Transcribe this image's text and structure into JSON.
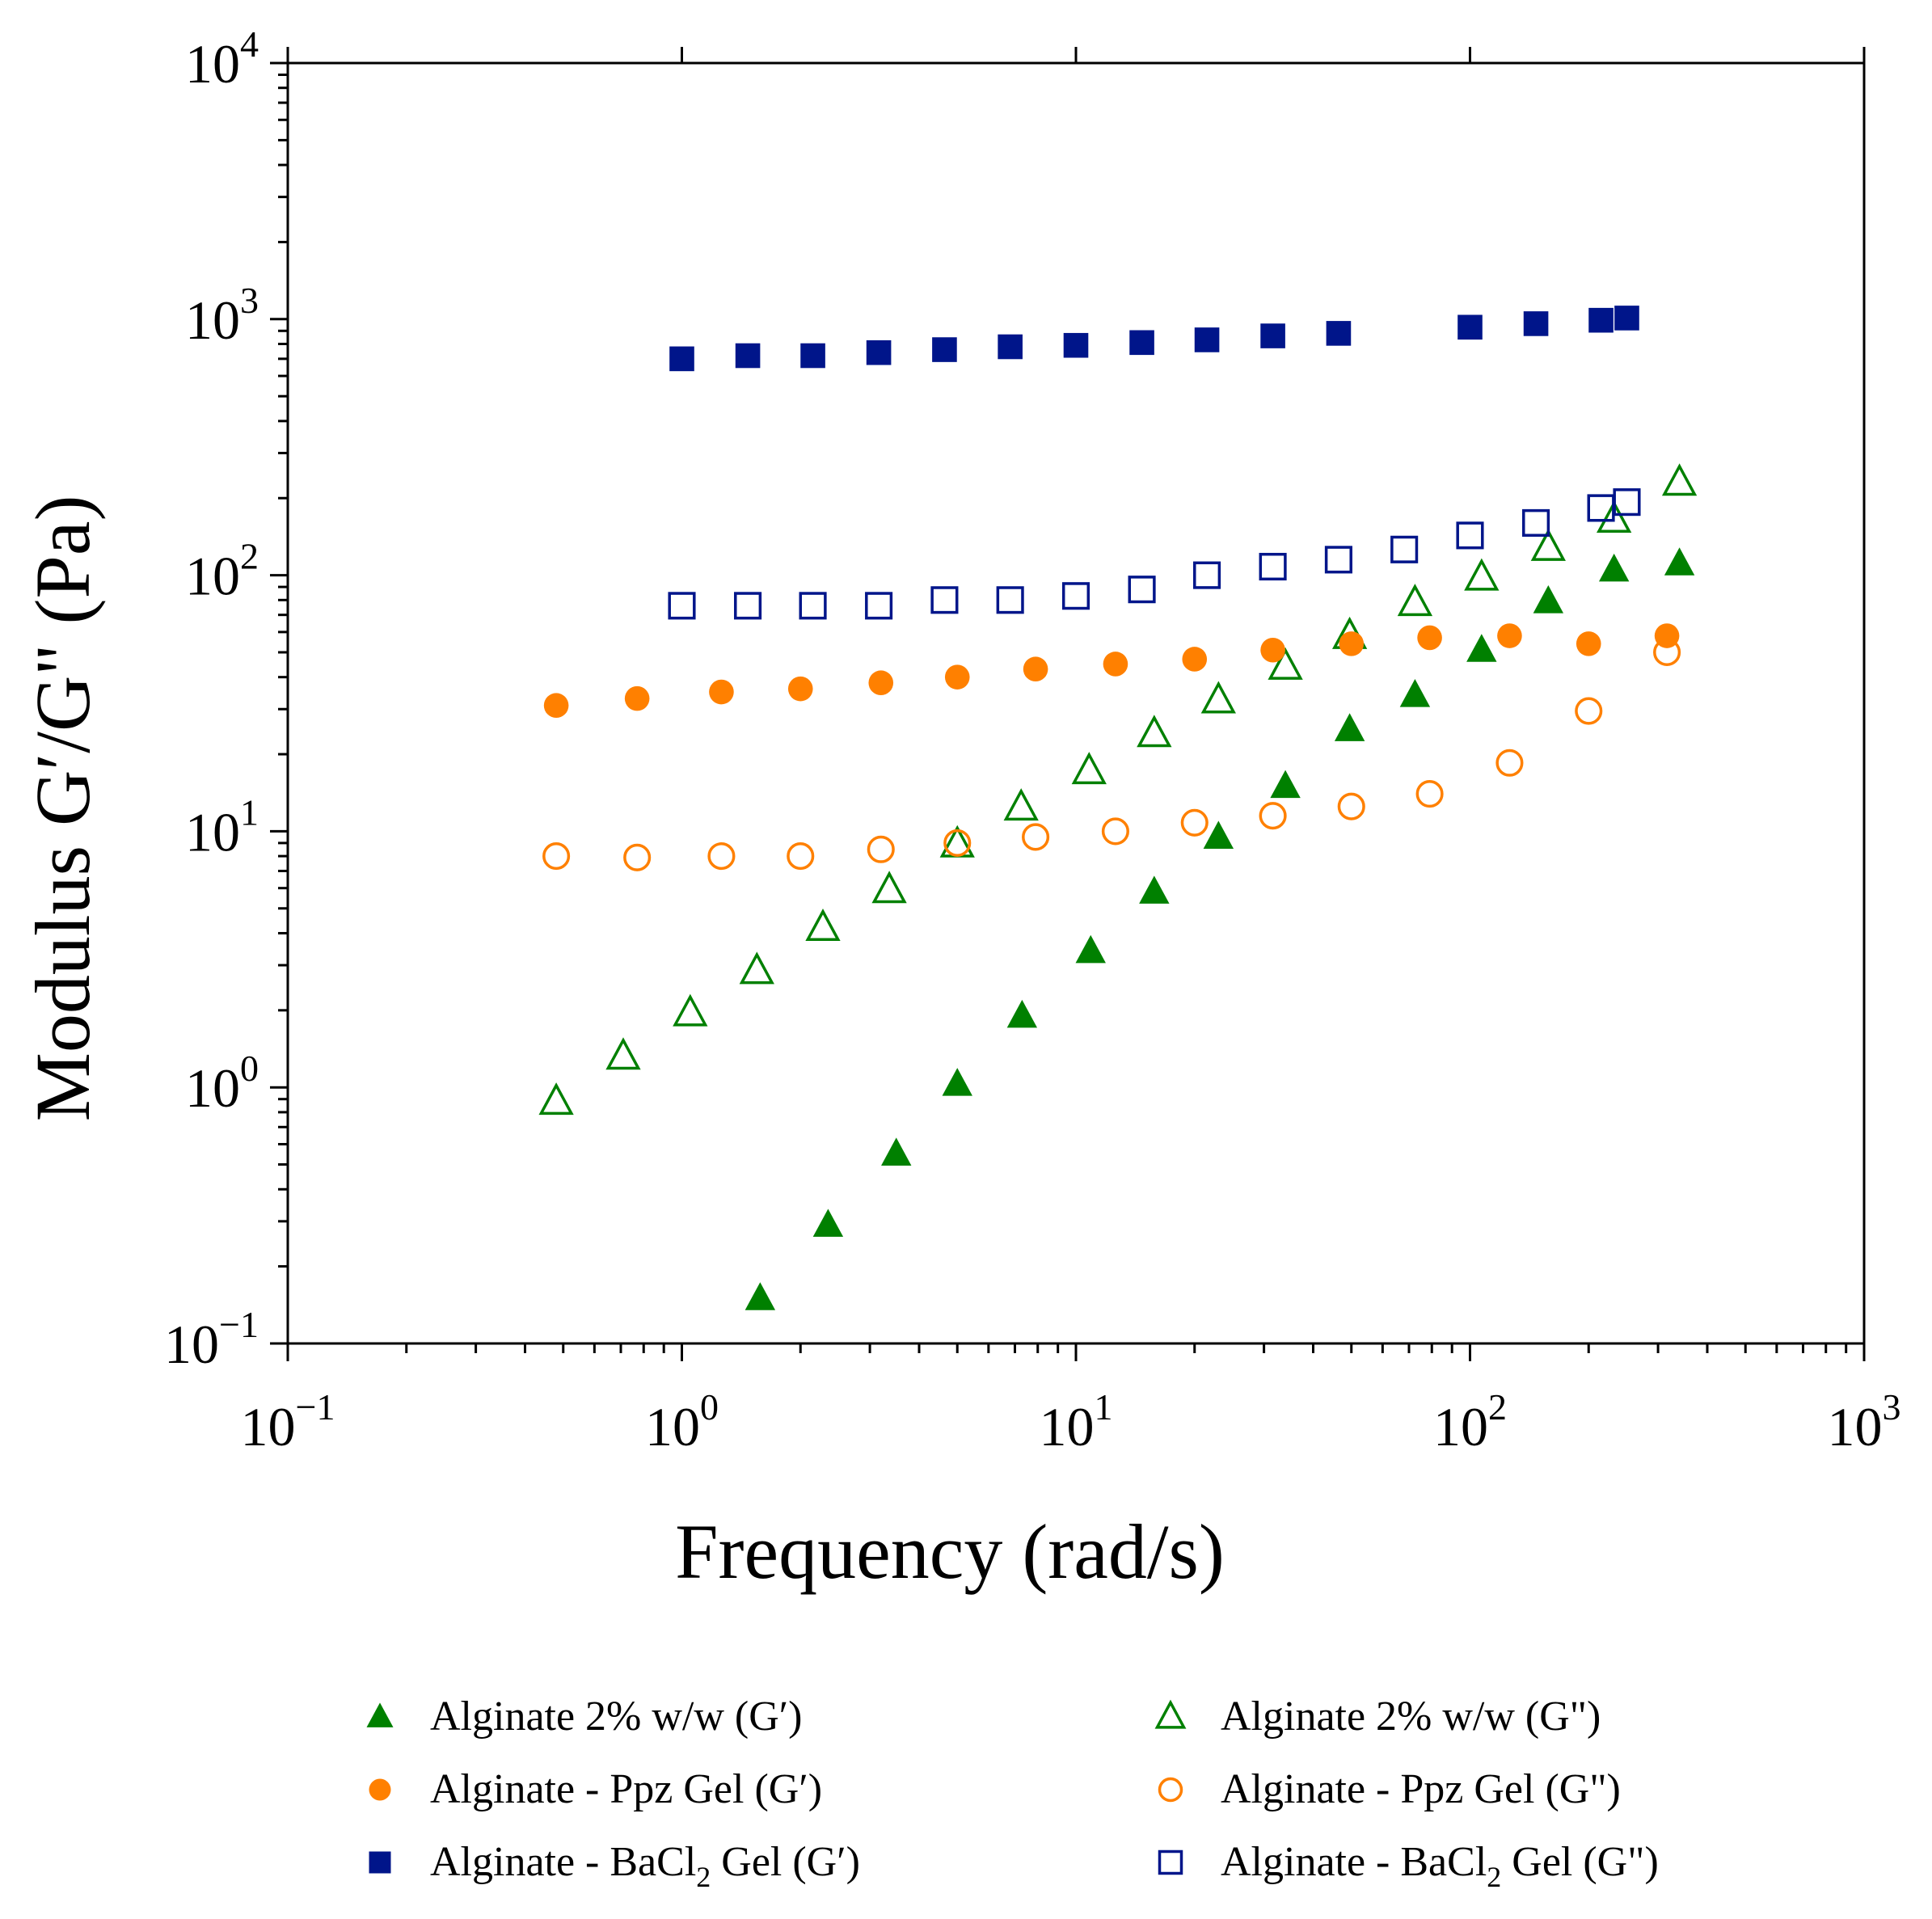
{
  "chart_data": {
    "type": "scatter",
    "title": "",
    "xlabel": "Frequency (rad/s)",
    "ylabel": "Modulus G′/G\" (Pa)",
    "xscale": "log",
    "yscale": "log",
    "xlim": [
      0.1,
      1000
    ],
    "ylim": [
      0.1,
      10000
    ],
    "x_ticks": [
      {
        "base": "10",
        "exp": "−1"
      },
      {
        "base": "10",
        "exp": "0"
      },
      {
        "base": "10",
        "exp": "1"
      },
      {
        "base": "10",
        "exp": "2"
      },
      {
        "base": "10",
        "exp": "3"
      }
    ],
    "y_ticks": [
      {
        "base": "10",
        "exp": "−1"
      },
      {
        "base": "10",
        "exp": "0"
      },
      {
        "base": "10",
        "exp": "1"
      },
      {
        "base": "10",
        "exp": "2"
      },
      {
        "base": "10",
        "exp": "3"
      },
      {
        "base": "10",
        "exp": "4"
      }
    ],
    "grid": false,
    "legend_position": "bottom",
    "series": [
      {
        "name": "Alginate 2% w/w (G′)",
        "marker": "triangle",
        "filled": true,
        "color": "#008000",
        "x": [
          1.58,
          2.35,
          3.5,
          5.0,
          7.3,
          10.9,
          15.8,
          23.0,
          34.0,
          49.5,
          72.5,
          107,
          158,
          232,
          340
        ],
        "y": [
          0.15,
          0.29,
          0.55,
          1.03,
          1.9,
          3.4,
          5.8,
          9.5,
          15.0,
          25.0,
          34.0,
          51.0,
          79.0,
          105.0,
          111.0
        ]
      },
      {
        "name": "Alginate 2% w/w (G\")",
        "marker": "triangle",
        "filled": false,
        "color": "#008000",
        "x": [
          0.48,
          0.71,
          1.05,
          1.55,
          2.28,
          3.36,
          5.0,
          7.26,
          10.8,
          15.8,
          23.0,
          34.0,
          49.5,
          72.5,
          107,
          158,
          232,
          340
        ],
        "y": [
          0.88,
          1.32,
          1.95,
          2.85,
          4.2,
          5.9,
          8.9,
          12.4,
          17.2,
          24.0,
          32.5,
          44.0,
          58.0,
          78.0,
          98.0,
          128.0,
          165.0,
          230.0
        ]
      },
      {
        "name": "Alginate - Ppz Gel (G′)",
        "marker": "circle",
        "filled": true,
        "color": "#ff8000",
        "x": [
          0.48,
          0.77,
          1.26,
          2.0,
          3.2,
          5.0,
          7.9,
          12.6,
          20.0,
          31.6,
          50.0,
          79.0,
          126,
          200,
          316
        ],
        "y": [
          31.0,
          33.0,
          35.0,
          36.0,
          38.0,
          40.0,
          43.0,
          45.0,
          47.0,
          51.0,
          54.0,
          57.0,
          58.0,
          54.0,
          58.0
        ]
      },
      {
        "name": "Alginate - Ppz Gel (G\")",
        "marker": "circle",
        "filled": false,
        "color": "#ff8000",
        "x": [
          0.48,
          0.77,
          1.26,
          2.0,
          3.2,
          5.0,
          7.9,
          12.6,
          20.0,
          31.6,
          50.0,
          79.0,
          126,
          200,
          316
        ],
        "y": [
          8.0,
          7.9,
          8.0,
          8.0,
          8.5,
          9.0,
          9.5,
          10.0,
          10.8,
          11.5,
          12.5,
          14.0,
          18.5,
          29.5,
          50.0
        ]
      },
      {
        "name": "Alginate - BaCl₂ Gel (G′)",
        "marker": "square",
        "filled": true,
        "color": "#00158a",
        "x": [
          1.0,
          1.47,
          2.15,
          3.16,
          4.64,
          6.81,
          10.0,
          14.7,
          21.5,
          31.6,
          46.4,
          100,
          147,
          215,
          250
        ],
        "y": [
          700,
          720,
          720,
          740,
          760,
          780,
          790,
          810,
          830,
          860,
          880,
          930,
          960,
          990,
          1010
        ]
      },
      {
        "name": "Alginate - BaCl₂ Gel (G\")",
        "marker": "square",
        "filled": false,
        "color": "#00158a",
        "x": [
          1.0,
          1.47,
          2.15,
          3.16,
          4.64,
          6.81,
          10.0,
          14.7,
          21.5,
          31.6,
          46.4,
          68.1,
          100,
          147,
          215,
          250
        ],
        "y": [
          76,
          76,
          76,
          76,
          80,
          80,
          83,
          88,
          100,
          108,
          115,
          126,
          143,
          160,
          183,
          193
        ]
      }
    ]
  },
  "legend": {
    "items": [
      {
        "text": "Alginate 2% w/w (G′)"
      },
      {
        "text": "Alginate 2% w/w (G\")"
      },
      {
        "text": "Alginate - Ppz Gel (G′)"
      },
      {
        "text": "Alginate - Ppz Gel (G\")"
      },
      {
        "pre": "Alginate - BaCl",
        "sub": "2",
        "post": " Gel (G′)"
      },
      {
        "pre": "Alginate - BaCl",
        "sub": "2",
        "post": " Gel (G\")"
      }
    ]
  }
}
